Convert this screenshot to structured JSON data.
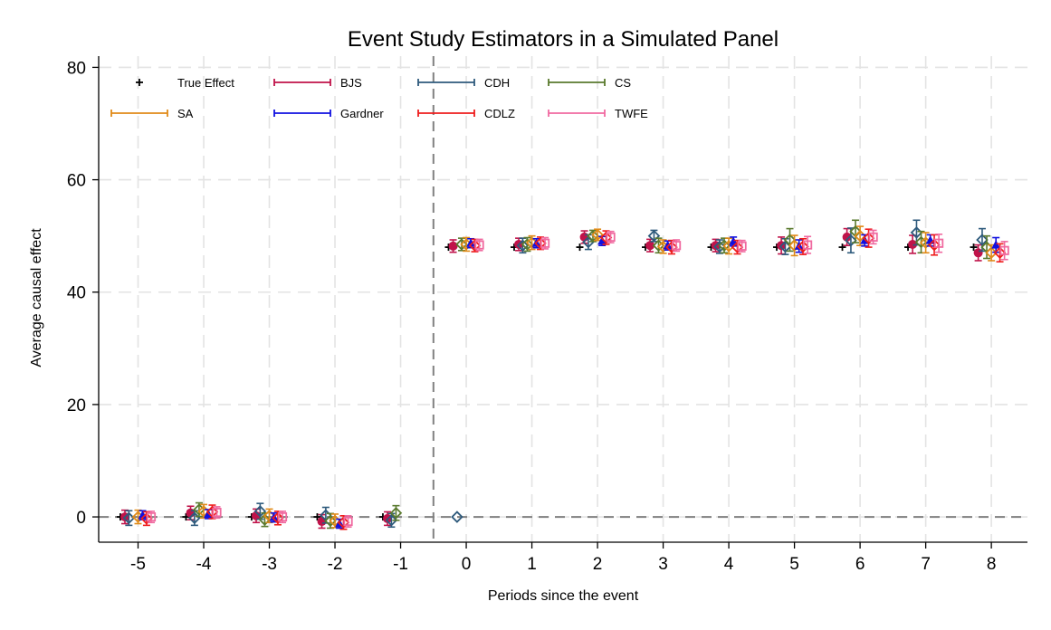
{
  "chart_data": {
    "type": "scatter",
    "title": "Event Study Estimators in a Simulated Panel",
    "xlabel": "Periods since the event",
    "ylabel": "Average causal effect",
    "xlim": [
      -5.6,
      8.55
    ],
    "ylim": [
      -4.5,
      82
    ],
    "x_ticks": [
      -5,
      -4,
      -3,
      -2,
      -1,
      0,
      1,
      2,
      3,
      4,
      5,
      6,
      7,
      8
    ],
    "y_ticks": [
      0,
      20,
      40,
      60,
      80
    ],
    "grid": true,
    "reference_lines": {
      "vertical_x": -0.5,
      "horizontal_y": 0
    },
    "legend": {
      "position": "top-left",
      "columns": 4
    },
    "periods": [
      -5,
      -4,
      -3,
      -2,
      -1,
      0,
      1,
      2,
      3,
      4,
      5,
      6,
      7,
      8
    ],
    "series": [
      {
        "name": "True Effect",
        "color": "#000000",
        "marker": "plus",
        "offset": -0.27,
        "points": [
          [
            -5,
            0
          ],
          [
            -4,
            0
          ],
          [
            -3,
            0
          ],
          [
            -2,
            0
          ],
          [
            -1,
            0
          ],
          [
            0,
            48
          ],
          [
            1,
            48
          ],
          [
            2,
            48
          ],
          [
            3,
            48
          ],
          [
            4,
            48
          ],
          [
            5,
            48
          ],
          [
            6,
            48
          ],
          [
            7,
            48
          ],
          [
            8,
            48
          ]
        ],
        "ci": null
      },
      {
        "name": "BJS",
        "color": "#c0134a",
        "marker": "circle",
        "offset": -0.2,
        "points": [
          [
            -5,
            0
          ],
          [
            -4,
            0.7
          ],
          [
            -3,
            0.2
          ],
          [
            -2,
            -0.8
          ],
          [
            -1,
            -0.3
          ],
          [
            0,
            48.2
          ],
          [
            1,
            48.5
          ],
          [
            2,
            49.8
          ],
          [
            3,
            48.3
          ],
          [
            4,
            48.3
          ],
          [
            5,
            48.3
          ],
          [
            6,
            49.8
          ],
          [
            7,
            48.5
          ],
          [
            8,
            47
          ]
        ],
        "ci": [
          [
            -5,
            -1.2,
            1.2
          ],
          [
            -4,
            -0.5,
            1.9
          ],
          [
            -3,
            -1,
            1.4
          ],
          [
            -2,
            -2,
            0.4
          ],
          [
            -1,
            -1.5,
            0.9
          ],
          [
            0,
            47.1,
            49.3
          ],
          [
            1,
            47.4,
            49.6
          ],
          [
            2,
            48.7,
            50.9
          ],
          [
            3,
            47.2,
            49.4
          ],
          [
            4,
            47.2,
            49.4
          ],
          [
            5,
            46.8,
            49.8
          ],
          [
            6,
            48.3,
            51.3
          ],
          [
            7,
            46.9,
            50.1
          ],
          [
            8,
            45.6,
            48.4
          ]
        ]
      },
      {
        "name": "CDH",
        "color": "#2e5a7c",
        "marker": "diamond",
        "offset": -0.14,
        "points": [
          [
            -5,
            -0.2
          ],
          [
            -4,
            -0.2
          ],
          [
            -3,
            1
          ],
          [
            -2,
            0.3
          ],
          [
            -1,
            -0.6
          ],
          [
            0,
            0
          ],
          [
            1,
            48.3
          ],
          [
            2,
            48.9
          ],
          [
            3,
            50
          ],
          [
            4,
            48.1
          ],
          [
            5,
            48.1
          ],
          [
            6,
            49.2
          ],
          [
            7,
            50.6
          ],
          [
            8,
            49.3
          ]
        ],
        "ci": [
          [
            -5,
            -1.5,
            1.1
          ],
          [
            -4,
            -1.5,
            1.1
          ],
          [
            -3,
            -0.4,
            2.4
          ],
          [
            -2,
            -1.1,
            1.7
          ],
          [
            -1,
            -1.8,
            0.6
          ],
          [
            1,
            47,
            49.6
          ],
          [
            2,
            47.6,
            50.2
          ],
          [
            3,
            49,
            51
          ],
          [
            4,
            46.9,
            49.3
          ],
          [
            5,
            46.7,
            49.5
          ],
          [
            6,
            47,
            51.4
          ],
          [
            7,
            48.4,
            52.8
          ],
          [
            8,
            47.3,
            51.3
          ]
        ]
      },
      {
        "name": "CS",
        "color": "#5a7a2e",
        "marker": "diamond",
        "offset": -0.07,
        "points": [
          [
            -4,
            1.3
          ],
          [
            -3,
            -0.5
          ],
          [
            -2,
            -0.7
          ],
          [
            -1,
            0.7
          ],
          [
            0,
            48.5
          ],
          [
            1,
            48.5
          ],
          [
            2,
            50
          ],
          [
            3,
            48.3
          ],
          [
            4,
            48.3
          ],
          [
            5,
            49.3
          ],
          [
            6,
            50.8
          ],
          [
            7,
            48.9
          ],
          [
            8,
            48
          ]
        ],
        "ci": [
          [
            -4,
            0.1,
            2.5
          ],
          [
            -3,
            -1.7,
            0.7
          ],
          [
            -2,
            -2,
            0.6
          ],
          [
            -1,
            -0.6,
            2
          ],
          [
            0,
            47.4,
            49.6
          ],
          [
            1,
            47.3,
            49.7
          ],
          [
            2,
            49,
            51
          ],
          [
            3,
            47,
            49.6
          ],
          [
            4,
            47,
            49.6
          ],
          [
            5,
            47.3,
            51.3
          ],
          [
            6,
            48.8,
            52.8
          ],
          [
            7,
            47,
            50.8
          ],
          [
            8,
            46,
            50
          ]
        ]
      },
      {
        "name": "SA",
        "color": "#e08a18",
        "marker": "diamond",
        "offset": 0,
        "points": [
          [
            -5,
            0
          ],
          [
            -4,
            1
          ],
          [
            -3,
            0.2
          ],
          [
            -2,
            -0.7
          ],
          [
            0,
            48.5
          ],
          [
            1,
            48.8
          ],
          [
            2,
            50.2
          ],
          [
            3,
            48.1
          ],
          [
            4,
            48.2
          ],
          [
            5,
            48.3
          ],
          [
            6,
            50
          ],
          [
            7,
            48.8
          ],
          [
            8,
            47
          ]
        ],
        "ci": [
          [
            -5,
            -1.2,
            1.2
          ],
          [
            -4,
            -0.2,
            2.2
          ],
          [
            -3,
            -1,
            1.4
          ],
          [
            -2,
            -1.9,
            0.5
          ],
          [
            0,
            47.3,
            49.7
          ],
          [
            1,
            47.6,
            50
          ],
          [
            2,
            49.2,
            51.2
          ],
          [
            3,
            46.9,
            49.3
          ],
          [
            4,
            46.8,
            49.6
          ],
          [
            5,
            46.5,
            50.1
          ],
          [
            6,
            48.3,
            51.7
          ],
          [
            7,
            47,
            50.6
          ],
          [
            8,
            45.6,
            48.4
          ]
        ]
      },
      {
        "name": "Gardner",
        "color": "#1010e0",
        "marker": "triangle",
        "offset": 0.07,
        "points": [
          [
            -5,
            0.3
          ],
          [
            -4,
            0.5
          ],
          [
            -3,
            -0.1
          ],
          [
            -2,
            -1.2
          ],
          [
            0,
            48.7
          ],
          [
            1,
            48.7
          ],
          [
            2,
            49.1
          ],
          [
            3,
            48.3
          ],
          [
            4,
            49
          ],
          [
            5,
            48.2
          ],
          [
            6,
            49.2
          ],
          [
            7,
            49.2
          ],
          [
            8,
            48.4
          ]
        ],
        "ci": [
          [
            -5,
            -0.5,
            1.1
          ],
          [
            -4,
            -0.3,
            1.3
          ],
          [
            -3,
            -0.9,
            0.7
          ],
          [
            -2,
            -2,
            -0.4
          ],
          [
            0,
            47.9,
            49.5
          ],
          [
            1,
            47.9,
            49.5
          ],
          [
            2,
            48.3,
            49.9
          ],
          [
            3,
            47.5,
            49.1
          ],
          [
            4,
            48.2,
            49.8
          ],
          [
            5,
            47.1,
            49.3
          ],
          [
            6,
            48.2,
            50.2
          ],
          [
            7,
            48.2,
            50.2
          ],
          [
            8,
            47.1,
            49.7
          ]
        ]
      },
      {
        "name": "CDLZ",
        "color": "#ee1c1c",
        "marker": "diamond",
        "offset": 0.13,
        "points": [
          [
            -5,
            -0.3
          ],
          [
            -4,
            0.9
          ],
          [
            -3,
            -0.2
          ],
          [
            -2,
            -1
          ],
          [
            0,
            48.3
          ],
          [
            1,
            48.7
          ],
          [
            2,
            49.7
          ],
          [
            3,
            48
          ],
          [
            4,
            48
          ],
          [
            5,
            48.1
          ],
          [
            6,
            49.6
          ],
          [
            7,
            48.4
          ],
          [
            8,
            47
          ]
        ],
        "ci": [
          [
            -5,
            -1.5,
            0.9
          ],
          [
            -4,
            -0.3,
            2.1
          ],
          [
            -3,
            -1.4,
            1
          ],
          [
            -2,
            -2.2,
            0.2
          ],
          [
            0,
            47.2,
            49.4
          ],
          [
            1,
            47.6,
            49.8
          ],
          [
            2,
            48.5,
            50.9
          ],
          [
            3,
            46.8,
            49.2
          ],
          [
            4,
            46.8,
            49.2
          ],
          [
            5,
            46.7,
            49.5
          ],
          [
            6,
            48,
            51.2
          ],
          [
            7,
            46.6,
            50.2
          ],
          [
            8,
            45.4,
            48.6
          ]
        ]
      },
      {
        "name": "TWFE",
        "color": "#f06aa0",
        "marker": "square",
        "offset": 0.2,
        "points": [
          [
            -5,
            0
          ],
          [
            -4,
            0.8
          ],
          [
            -3,
            0
          ],
          [
            -2,
            -0.8
          ],
          [
            0,
            48.4
          ],
          [
            1,
            48.7
          ],
          [
            2,
            49.8
          ],
          [
            3,
            48.3
          ],
          [
            4,
            48.2
          ],
          [
            5,
            48.4
          ],
          [
            6,
            49.8
          ],
          [
            7,
            48.7
          ],
          [
            8,
            47.4
          ]
        ],
        "ci": [
          [
            -5,
            -1,
            1
          ],
          [
            -4,
            -0.2,
            1.8
          ],
          [
            -3,
            -1,
            1
          ],
          [
            -2,
            -1.8,
            0.2
          ],
          [
            0,
            47.4,
            49.4
          ],
          [
            1,
            47.7,
            49.7
          ],
          [
            2,
            48.8,
            50.8
          ],
          [
            3,
            47.3,
            49.3
          ],
          [
            4,
            47.2,
            49.2
          ],
          [
            5,
            46.9,
            49.9
          ],
          [
            6,
            48.6,
            51
          ],
          [
            7,
            47.1,
            50.3
          ],
          [
            8,
            45.8,
            49
          ]
        ]
      }
    ]
  }
}
